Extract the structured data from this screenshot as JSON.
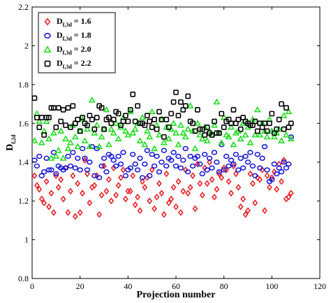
{
  "chart_data": {
    "type": "scatter",
    "xlabel": "Projection number",
    "ylabel_main": "D",
    "ylabel_sub": "f,2d",
    "xlim": [
      0,
      120
    ],
    "ylim": [
      0.8,
      2.2
    ],
    "xticks": [
      0,
      20,
      40,
      60,
      80,
      100,
      120
    ],
    "yticks": [
      0.8,
      1.0,
      1.2,
      1.4,
      1.6,
      1.8,
      2.0,
      2.2
    ],
    "xtick_labels": [
      "0",
      "20",
      "40",
      "60",
      "80",
      "100",
      "120"
    ],
    "ytick_labels": [
      "0.8",
      "1",
      "1.2",
      "1.4",
      "1.6",
      "1.8",
      "2",
      "2.2"
    ],
    "grid": false,
    "legend_position": "top-left",
    "series": [
      {
        "legend_main": "D",
        "legend_sub": "f,3d",
        "legend_value": " = 1.6",
        "marker": "diamond",
        "color": "#e8252a",
        "x": [
          1,
          2,
          3,
          4,
          5,
          6,
          7,
          8,
          9,
          10,
          11,
          12,
          13,
          14,
          15,
          16,
          17,
          18,
          19,
          20,
          21,
          22,
          23,
          24,
          25,
          26,
          27,
          28,
          29,
          30,
          31,
          32,
          33,
          34,
          35,
          36,
          37,
          38,
          39,
          40,
          41,
          42,
          43,
          44,
          45,
          46,
          47,
          48,
          49,
          50,
          51,
          52,
          53,
          54,
          55,
          56,
          57,
          58,
          59,
          60,
          61,
          62,
          63,
          64,
          65,
          66,
          67,
          68,
          69,
          70,
          71,
          72,
          73,
          74,
          75,
          76,
          77,
          78,
          79,
          80,
          81,
          82,
          83,
          84,
          85,
          86,
          87,
          88,
          89,
          90,
          91,
          92,
          93,
          94,
          95,
          96,
          97,
          98,
          99,
          100,
          101,
          102,
          103,
          104,
          105,
          106,
          107,
          108
        ],
        "y": [
          1.33,
          1.28,
          1.26,
          1.21,
          1.19,
          1.3,
          1.17,
          1.24,
          1.14,
          1.33,
          1.27,
          1.31,
          1.21,
          1.37,
          1.14,
          1.25,
          1.33,
          1.12,
          1.29,
          1.14,
          1.24,
          1.41,
          1.34,
          1.19,
          1.27,
          1.28,
          1.33,
          1.13,
          1.23,
          1.38,
          1.25,
          1.31,
          1.2,
          1.37,
          1.23,
          1.28,
          1.32,
          1.36,
          1.21,
          1.25,
          1.25,
          1.33,
          1.18,
          1.22,
          1.15,
          1.3,
          1.27,
          1.32,
          1.2,
          1.36,
          1.16,
          1.22,
          1.29,
          1.24,
          1.13,
          1.34,
          1.19,
          1.21,
          1.27,
          1.17,
          1.3,
          1.14,
          1.25,
          1.36,
          1.24,
          1.27,
          1.33,
          1.16,
          1.39,
          1.29,
          1.23,
          1.37,
          1.29,
          1.4,
          1.31,
          1.22,
          1.26,
          1.34,
          1.32,
          1.37,
          1.36,
          1.3,
          1.24,
          1.38,
          1.34,
          1.27,
          1.17,
          1.21,
          1.13,
          1.15,
          1.34,
          1.29,
          1.19,
          1.32,
          1.31,
          1.36,
          1.15,
          1.33,
          1.27,
          1.32,
          1.35,
          1.26,
          1.39,
          1.3,
          1.41,
          1.21,
          1.22,
          1.24
        ]
      },
      {
        "legend_main": "D",
        "legend_sub": "f,3d",
        "legend_value": " = 1.8",
        "marker": "circle",
        "color": "#1c1cd8",
        "x": [
          1,
          2,
          3,
          4,
          5,
          6,
          7,
          8,
          9,
          10,
          11,
          12,
          13,
          14,
          15,
          16,
          17,
          18,
          19,
          20,
          21,
          22,
          23,
          24,
          25,
          26,
          27,
          28,
          29,
          30,
          31,
          32,
          33,
          34,
          35,
          36,
          37,
          38,
          39,
          40,
          41,
          42,
          43,
          44,
          45,
          46,
          47,
          48,
          49,
          50,
          51,
          52,
          53,
          54,
          55,
          56,
          57,
          58,
          59,
          60,
          61,
          62,
          63,
          64,
          65,
          66,
          67,
          68,
          69,
          70,
          71,
          72,
          73,
          74,
          75,
          76,
          77,
          78,
          79,
          80,
          81,
          82,
          83,
          84,
          85,
          86,
          87,
          88,
          89,
          90,
          91,
          92,
          93,
          94,
          95,
          96,
          97,
          98,
          99,
          100,
          101,
          102,
          103,
          104,
          105,
          106,
          107,
          108
        ],
        "y": [
          1.41,
          1.38,
          1.43,
          1.33,
          1.35,
          1.42,
          1.36,
          1.36,
          1.45,
          1.34,
          1.38,
          1.37,
          1.36,
          1.37,
          1.43,
          1.38,
          1.45,
          1.37,
          1.42,
          1.36,
          1.47,
          1.42,
          1.36,
          1.4,
          1.48,
          1.33,
          1.47,
          1.32,
          1.38,
          1.42,
          1.35,
          1.44,
          1.43,
          1.41,
          1.38,
          1.43,
          1.39,
          1.45,
          1.33,
          1.36,
          1.37,
          1.44,
          1.39,
          1.36,
          1.42,
          1.32,
          1.39,
          1.46,
          1.33,
          1.44,
          1.38,
          1.43,
          1.35,
          1.4,
          1.46,
          1.38,
          1.42,
          1.41,
          1.45,
          1.38,
          1.43,
          1.37,
          1.41,
          1.47,
          1.35,
          1.43,
          1.38,
          1.42,
          1.43,
          1.39,
          1.34,
          1.44,
          1.36,
          1.42,
          1.37,
          1.45,
          1.4,
          1.35,
          1.49,
          1.36,
          1.43,
          1.38,
          1.41,
          1.39,
          1.44,
          1.36,
          1.42,
          1.37,
          1.43,
          1.4,
          1.45,
          1.38,
          1.33,
          1.44,
          1.37,
          1.42,
          1.48,
          1.36,
          1.3,
          1.31,
          1.39,
          1.34,
          1.37,
          1.35,
          1.4,
          1.37,
          1.39,
          1.53
        ]
      },
      {
        "legend_main": "D",
        "legend_sub": "f,3d",
        "legend_value": " = 2.0",
        "marker": "triangle",
        "color": "#22dd22",
        "x": [
          1,
          2,
          3,
          4,
          5,
          6,
          7,
          8,
          9,
          10,
          11,
          12,
          13,
          14,
          15,
          16,
          17,
          18,
          19,
          20,
          21,
          22,
          23,
          24,
          25,
          26,
          27,
          28,
          29,
          30,
          31,
          32,
          33,
          34,
          35,
          36,
          37,
          38,
          39,
          40,
          41,
          42,
          43,
          44,
          45,
          46,
          47,
          48,
          49,
          50,
          51,
          52,
          53,
          54,
          55,
          56,
          57,
          58,
          59,
          60,
          61,
          62,
          63,
          64,
          65,
          66,
          67,
          68,
          69,
          70,
          71,
          72,
          73,
          74,
          75,
          76,
          77,
          78,
          79,
          80,
          81,
          82,
          83,
          84,
          85,
          86,
          87,
          88,
          89,
          90,
          91,
          92,
          93,
          94,
          95,
          96,
          97,
          98,
          99,
          100,
          101,
          102,
          103,
          104,
          105,
          106,
          107,
          108
        ],
        "y": [
          1.51,
          1.65,
          1.61,
          1.5,
          1.56,
          1.61,
          1.52,
          1.42,
          1.55,
          1.43,
          1.46,
          1.56,
          1.42,
          1.52,
          1.47,
          1.5,
          1.59,
          1.53,
          1.48,
          1.56,
          1.62,
          1.51,
          1.57,
          1.48,
          1.72,
          1.55,
          1.59,
          1.48,
          1.53,
          1.57,
          1.67,
          1.49,
          1.57,
          1.55,
          1.6,
          1.52,
          1.58,
          1.63,
          1.56,
          1.54,
          1.66,
          1.55,
          1.57,
          1.6,
          1.51,
          1.63,
          1.49,
          1.56,
          1.53,
          1.66,
          1.47,
          1.59,
          1.54,
          1.62,
          1.5,
          1.58,
          1.52,
          1.57,
          1.6,
          1.55,
          1.49,
          1.59,
          1.55,
          1.53,
          1.57,
          1.69,
          1.56,
          1.47,
          1.6,
          1.54,
          1.52,
          1.58,
          1.51,
          1.56,
          1.54,
          1.59,
          1.71,
          1.55,
          1.5,
          1.63,
          1.54,
          1.53,
          1.58,
          1.49,
          1.55,
          1.56,
          1.52,
          1.6,
          1.54,
          1.58,
          1.5,
          1.62,
          1.54,
          1.67,
          1.54,
          1.6,
          1.56,
          1.53,
          1.62,
          1.56,
          1.53,
          1.55,
          1.57,
          1.51,
          1.64,
          1.54,
          1.66,
          1.52
        ]
      },
      {
        "legend_main": "D",
        "legend_sub": "f,3d",
        "legend_value": " = 2.2",
        "marker": "square",
        "color": "#000000",
        "x": [
          1,
          2,
          3,
          4,
          5,
          6,
          7,
          8,
          9,
          10,
          11,
          12,
          13,
          14,
          15,
          16,
          17,
          18,
          19,
          20,
          21,
          22,
          23,
          24,
          25,
          26,
          27,
          28,
          29,
          30,
          31,
          32,
          33,
          34,
          35,
          36,
          37,
          38,
          39,
          40,
          41,
          42,
          43,
          44,
          45,
          46,
          47,
          48,
          49,
          50,
          51,
          52,
          53,
          54,
          55,
          56,
          57,
          58,
          59,
          60,
          61,
          62,
          63,
          64,
          65,
          66,
          67,
          68,
          69,
          70,
          71,
          72,
          73,
          74,
          75,
          76,
          77,
          78,
          79,
          80,
          81,
          82,
          83,
          84,
          85,
          86,
          87,
          88,
          89,
          90,
          91,
          92,
          93,
          94,
          95,
          96,
          97,
          98,
          99,
          100,
          101,
          102,
          103,
          104,
          105,
          106,
          107,
          108
        ],
        "y": [
          1.73,
          1.63,
          1.58,
          1.63,
          1.54,
          1.63,
          1.63,
          1.68,
          1.68,
          1.58,
          1.68,
          1.61,
          1.67,
          1.59,
          1.68,
          1.58,
          1.69,
          1.6,
          1.62,
          1.56,
          1.63,
          1.6,
          1.59,
          1.64,
          1.62,
          1.57,
          1.63,
          1.69,
          1.68,
          1.57,
          1.62,
          1.63,
          1.6,
          1.62,
          1.66,
          1.65,
          1.59,
          1.61,
          1.64,
          1.61,
          1.67,
          1.75,
          1.61,
          1.69,
          1.6,
          1.6,
          1.59,
          1.64,
          1.61,
          1.58,
          1.62,
          1.57,
          1.66,
          1.62,
          1.53,
          1.62,
          1.58,
          1.65,
          1.71,
          1.76,
          1.64,
          1.71,
          1.67,
          1.69,
          1.74,
          1.61,
          1.6,
          1.56,
          1.67,
          1.57,
          1.57,
          1.54,
          1.58,
          1.55,
          1.54,
          1.61,
          1.55,
          1.55,
          1.65,
          1.58,
          1.61,
          1.62,
          1.6,
          1.67,
          1.6,
          1.62,
          1.57,
          1.63,
          1.61,
          1.6,
          1.59,
          1.59,
          1.61,
          1.56,
          1.6,
          1.58,
          1.6,
          1.56,
          1.6,
          1.65,
          1.55,
          1.57,
          1.62,
          1.7,
          1.57,
          1.68,
          1.58,
          1.6
        ]
      }
    ]
  }
}
